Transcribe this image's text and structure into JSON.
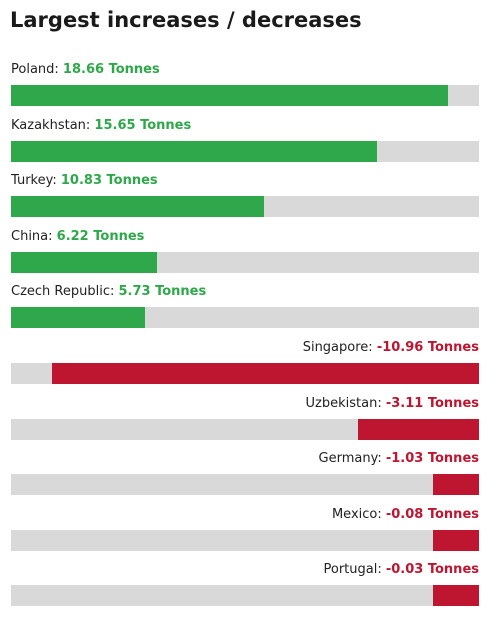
{
  "chart_data": {
    "type": "bar",
    "title": "Largest increases / decreases",
    "unit": "Tonnes",
    "colors": {
      "increase": "#2ea84a",
      "decrease": "#be1530",
      "track": "#d9d9d9"
    },
    "increases": [
      {
        "name": "Poland",
        "value": 18.66,
        "label": "18.66 Tonnes"
      },
      {
        "name": "Kazakhstan",
        "value": 15.65,
        "label": "15.65 Tonnes"
      },
      {
        "name": "Turkey",
        "value": 10.83,
        "label": "10.83 Tonnes"
      },
      {
        "name": "China",
        "value": 6.22,
        "label": "6.22 Tonnes"
      },
      {
        "name": "Czech Republic",
        "value": 5.73,
        "label": "5.73 Tonnes"
      }
    ],
    "decreases": [
      {
        "name": "Singapore",
        "value": -10.96,
        "label": "-10.96 Tonnes"
      },
      {
        "name": "Uzbekistan",
        "value": -3.11,
        "label": "-3.11 Tonnes"
      },
      {
        "name": "Germany",
        "value": -1.03,
        "label": "-1.03 Tonnes"
      },
      {
        "name": "Mexico",
        "value": -0.08,
        "label": "-0.08 Tonnes"
      },
      {
        "name": "Portugal",
        "value": -0.03,
        "label": "-0.03 Tonnes"
      }
    ]
  }
}
